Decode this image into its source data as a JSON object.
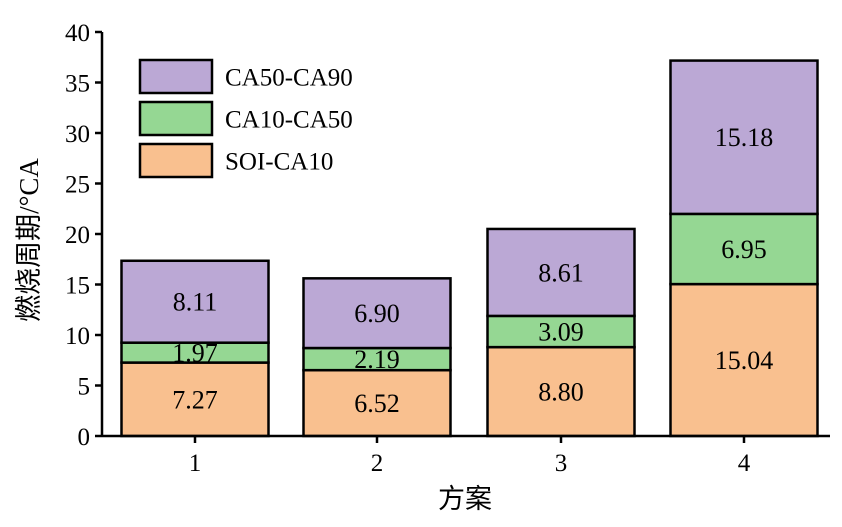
{
  "chart_data": {
    "type": "bar",
    "stacked": true,
    "categories": [
      "1",
      "2",
      "3",
      "4"
    ],
    "series": [
      {
        "name": "SOI-CA10",
        "values": [
          7.27,
          6.52,
          8.8,
          15.04
        ],
        "labels": [
          "7.27",
          "6.52",
          "8.80",
          "15.04"
        ],
        "color": "#F9C08F"
      },
      {
        "name": "CA10-CA50",
        "values": [
          1.97,
          2.19,
          3.09,
          6.95
        ],
        "labels": [
          "1.97",
          "2.19",
          "3.09",
          "6.95"
        ],
        "color": "#95D793"
      },
      {
        "name": "CA50-CA90",
        "values": [
          8.11,
          6.9,
          8.61,
          15.18
        ],
        "labels": [
          "8.11",
          "6.90",
          "8.61",
          "15.18"
        ],
        "color": "#BBA8D5"
      }
    ],
    "xlabel": "方案",
    "ylabel": "燃烧周期/°CA",
    "ylim": [
      0,
      40
    ],
    "yticks": [
      "0",
      "5",
      "10",
      "15",
      "20",
      "25",
      "30",
      "35",
      "40"
    ],
    "legend_order": [
      "CA50-CA90",
      "CA10-CA50",
      "SOI-CA10"
    ],
    "legend_position": "top-left",
    "grid": false
  }
}
